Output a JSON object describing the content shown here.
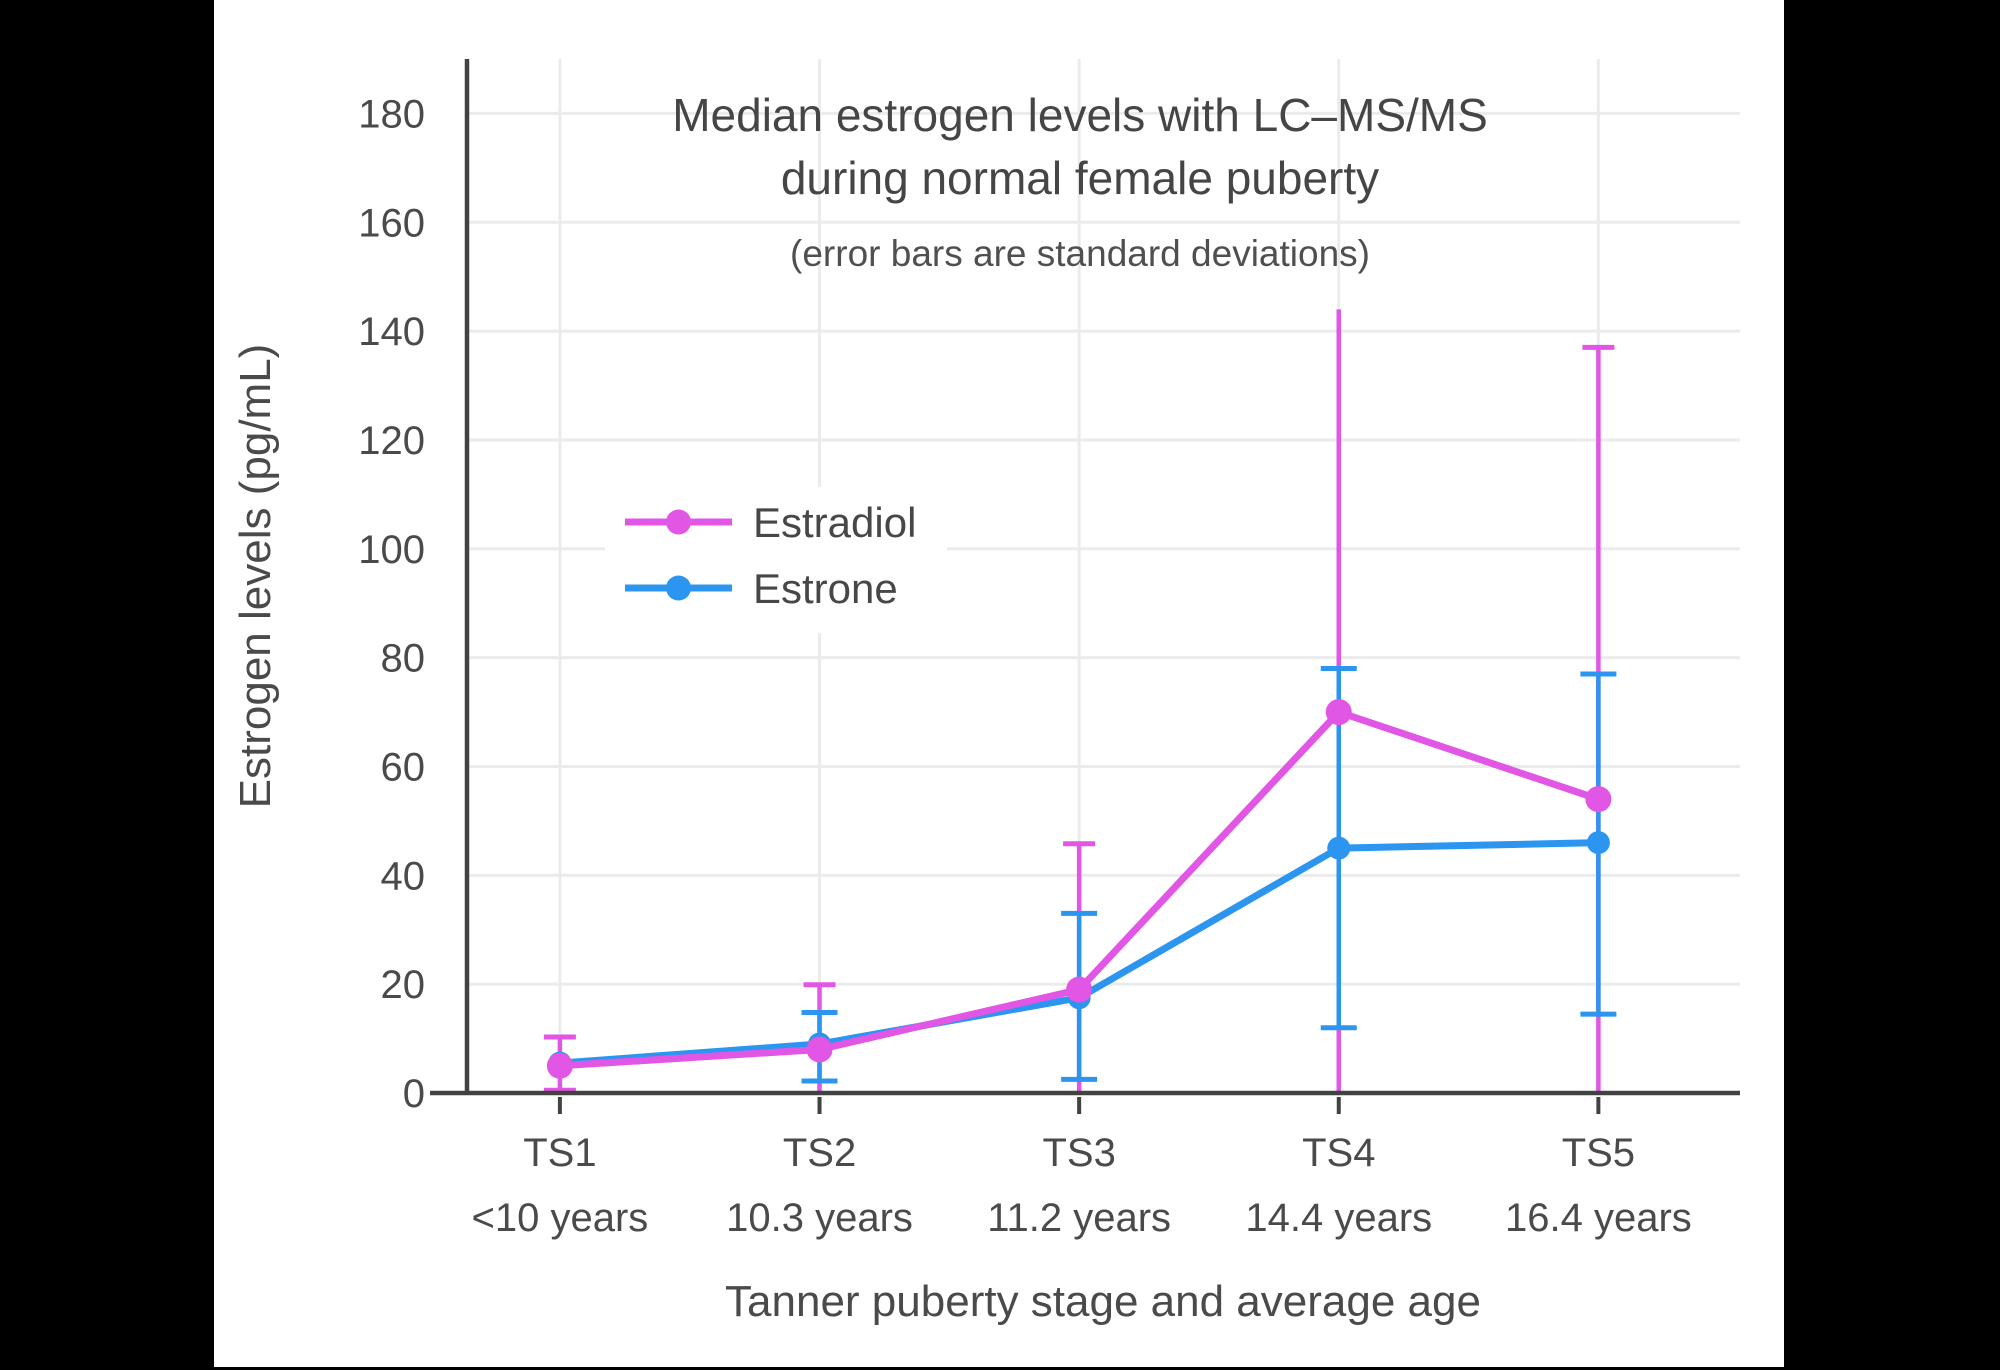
{
  "window": {
    "letterbox_color": "#000000",
    "canvas_background": "#ffffff"
  },
  "chart_data": {
    "type": "line",
    "title": "Median estrogen levels with LC–MS/MS",
    "title_line2": "during normal female puberty",
    "subtitle": "(error bars are standard deviations)",
    "xlabel": "Tanner puberty stage and average age",
    "ylabel": "Estrogen levels (pg/mL)",
    "ylim": [
      0,
      190
    ],
    "yticks": [
      0,
      20,
      40,
      60,
      80,
      100,
      120,
      140,
      160,
      180
    ],
    "grid": true,
    "legend_position": "inside-upper-left",
    "categories": [
      "TS1",
      "TS2",
      "TS3",
      "TS4",
      "TS5"
    ],
    "category_sublabels": [
      "<10 years",
      "10.3 years",
      "11.2 years",
      "14.4 years",
      "16.4 years"
    ],
    "error_bar_meaning": "standard deviations",
    "series": [
      {
        "name": "Estradiol",
        "color": "#E156E5",
        "values": [
          5,
          8,
          19,
          70,
          54
        ],
        "err_low": [
          0.5,
          0,
          0,
          0,
          0
        ],
        "err_high": [
          10.3,
          19.9,
          45.8,
          144,
          137
        ],
        "cap_low": [
          true,
          false,
          false,
          false,
          false
        ],
        "cap_high": [
          true,
          true,
          true,
          false,
          true
        ]
      },
      {
        "name": "Estrone",
        "color": "#2C95EF",
        "values": [
          5.5,
          9,
          17.5,
          45,
          46
        ],
        "err_low": [
          null,
          2.2,
          2.5,
          12,
          14.5
        ],
        "err_high": [
          null,
          14.8,
          33,
          78,
          77
        ],
        "cap_low": [
          false,
          true,
          true,
          true,
          true
        ],
        "cap_high": [
          false,
          true,
          true,
          true,
          true
        ]
      }
    ]
  }
}
